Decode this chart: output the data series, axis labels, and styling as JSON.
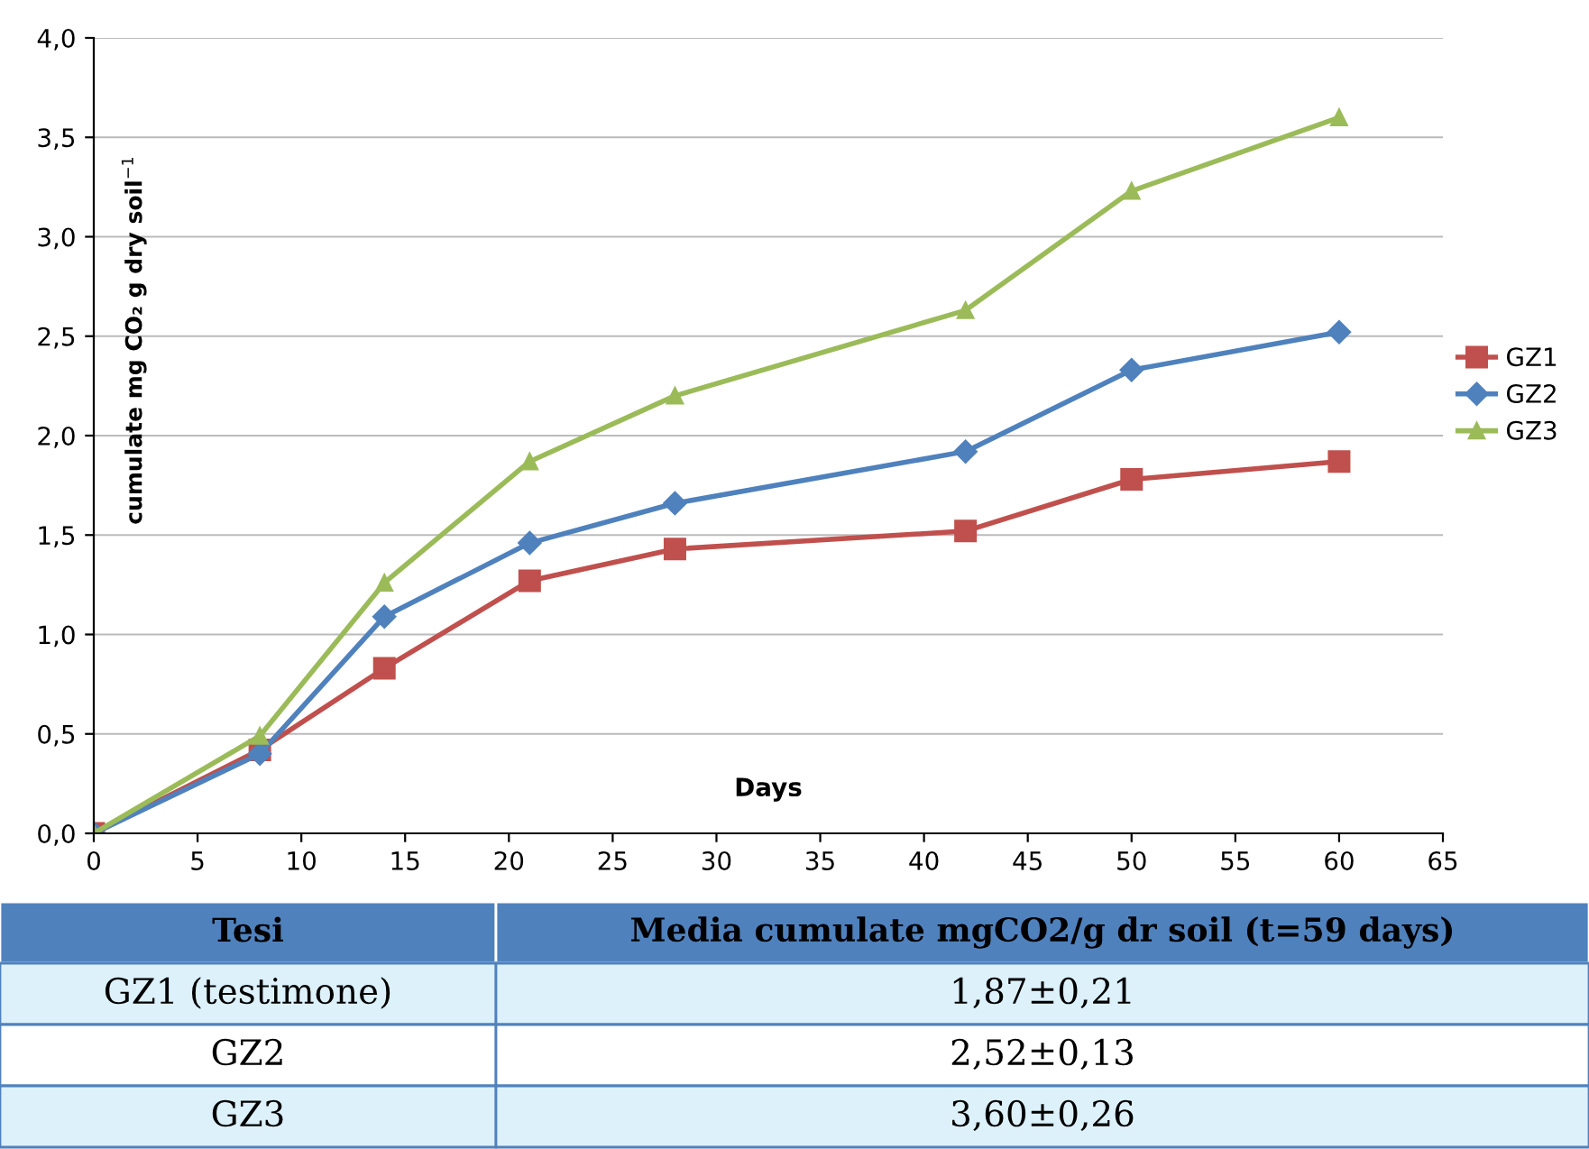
{
  "chart_data": {
    "type": "line",
    "xlabel": "Days",
    "ylabel": "cumulate mg CO₂ g dry soil$^{−1}$",
    "x": [
      0,
      8,
      14,
      21,
      28,
      42,
      50,
      60
    ],
    "series": [
      {
        "name": "GZ1",
        "color": "#c0504d",
        "marker": "square",
        "values": [
          0,
          0.42,
          0.83,
          1.27,
          1.43,
          1.52,
          1.78,
          1.87
        ]
      },
      {
        "name": "GZ2",
        "color": "#4f81bd",
        "marker": "diamond",
        "values": [
          0,
          0.4,
          1.09,
          1.46,
          1.66,
          1.92,
          2.33,
          2.52
        ]
      },
      {
        "name": "GZ3",
        "color": "#9bbb59",
        "marker": "triangle",
        "values": [
          0,
          0.49,
          1.26,
          1.87,
          2.2,
          2.63,
          3.23,
          3.6
        ]
      }
    ],
    "xlim": [
      0,
      65
    ],
    "xticks": [
      0,
      5,
      10,
      15,
      20,
      25,
      30,
      35,
      40,
      45,
      50,
      55,
      60,
      65
    ],
    "ylim": [
      0,
      4
    ],
    "yticks": [
      {
        "value": 0,
        "label": "0,0"
      },
      {
        "value": 0.5,
        "label": "0,5"
      },
      {
        "value": 1,
        "label": "1,0"
      },
      {
        "value": 1.5,
        "label": "1,5"
      },
      {
        "value": 2,
        "label": "2,0"
      },
      {
        "value": 2.5,
        "label": "2,5"
      },
      {
        "value": 3,
        "label": "3,0"
      },
      {
        "value": 3.5,
        "label": "3,5"
      },
      {
        "value": 4,
        "label": "4,0"
      }
    ],
    "grid": "y",
    "legend": "right",
    "annotations": [
      "Tesi",
      "Media cumulate mgCO2/g dr soil (t=59 days)",
      "GZ1 (testimone)",
      "1,87±0,21",
      "GZ2",
      "2,52±0,13",
      "GZ3",
      "3,60±0,26"
    ]
  }
}
